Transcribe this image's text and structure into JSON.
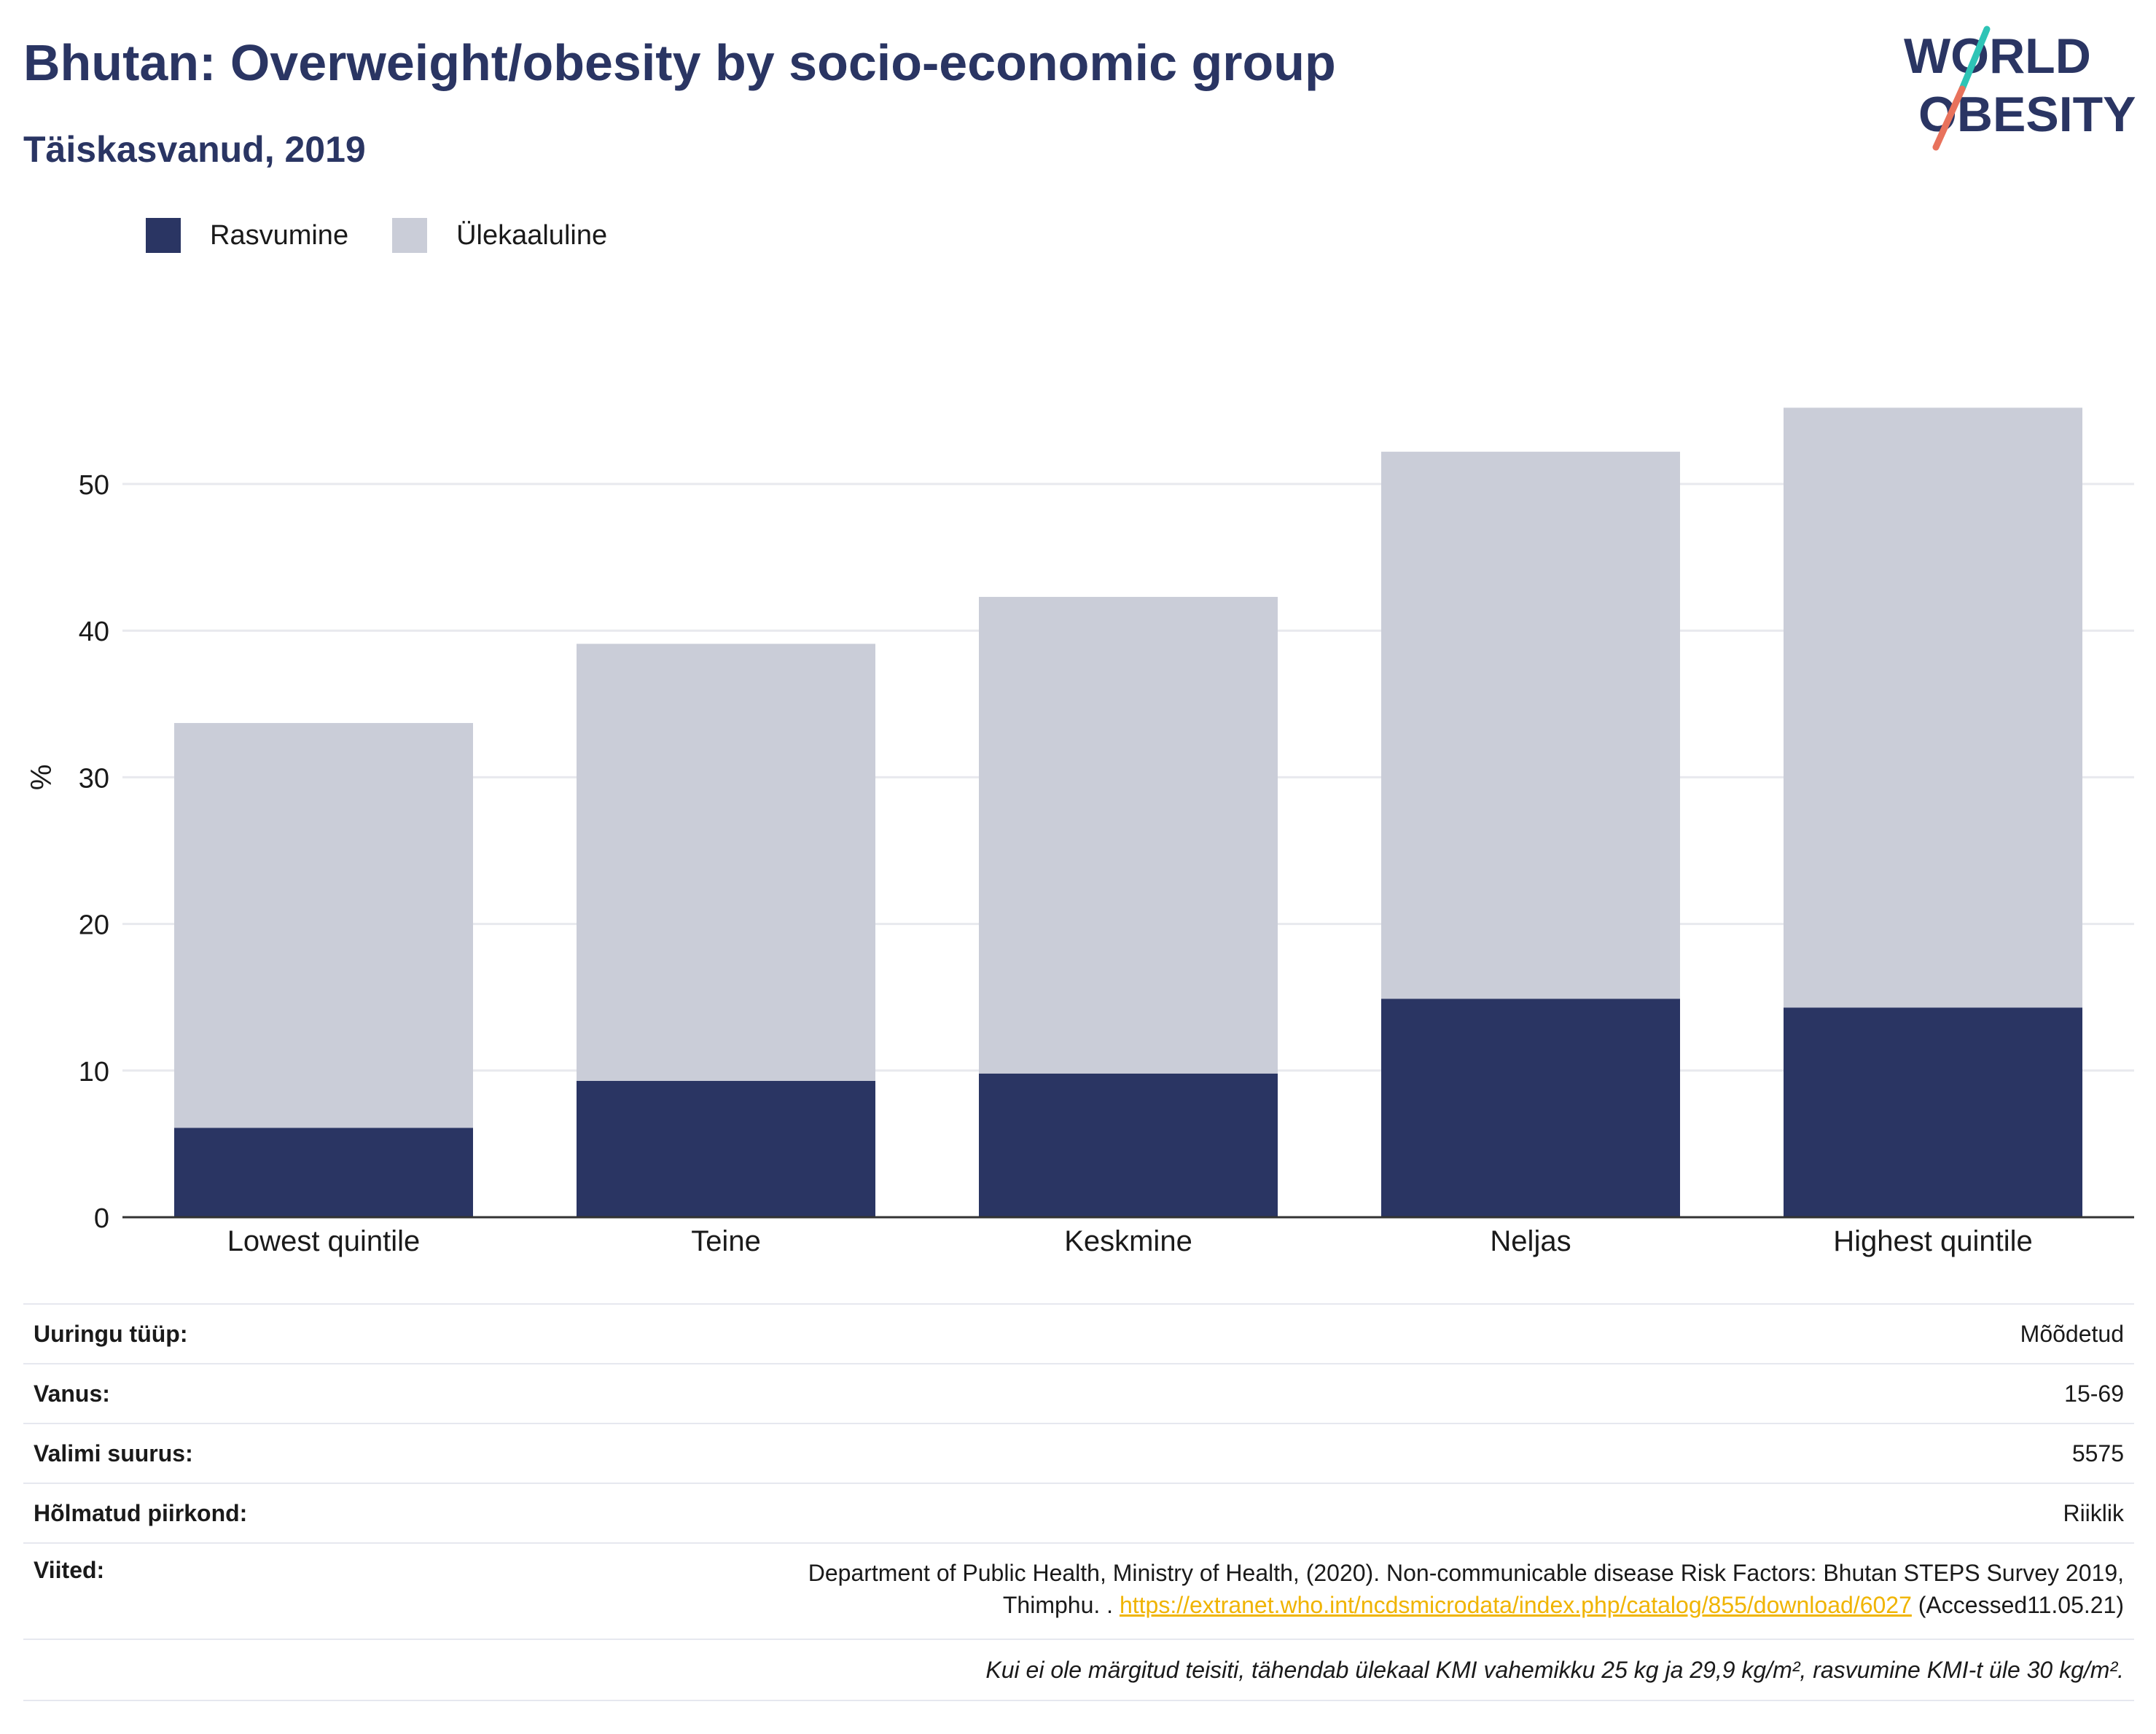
{
  "title": "Bhutan: Overweight/obesity by socio-economic group",
  "subtitle": "Täiskasvanud, 2019",
  "logo": {
    "line1": "WORLD",
    "line2": "OBESITY"
  },
  "colors": {
    "title": "#2a3563",
    "obesity": "#2a3563",
    "overweight": "#cacdd8",
    "accent_teal": "#2ec4b6",
    "accent_red": "#e8725c",
    "link": "#f0b400"
  },
  "chart_data": {
    "type": "bar",
    "stacked": true,
    "categories": [
      "Lowest quintile",
      "Teine",
      "Keskmine",
      "Neljas",
      "Highest quintile"
    ],
    "series": [
      {
        "name": "Rasvumine",
        "values": [
          6.1,
          9.3,
          9.8,
          14.9,
          14.3
        ]
      },
      {
        "name": "Ülekaaluline",
        "values": [
          27.6,
          29.8,
          32.5,
          37.3,
          40.9
        ]
      }
    ],
    "ylabel": "%",
    "xlabel": "",
    "ylim": [
      0,
      55
    ],
    "yticks": [
      0,
      10,
      20,
      30,
      40,
      50
    ],
    "grid": true,
    "legend_position": "top-left"
  },
  "details": {
    "survey_type": {
      "label": "Uuringu tüüp:",
      "value": "Mõõdetud"
    },
    "age": {
      "label": "Vanus:",
      "value": "15-69"
    },
    "sample_size": {
      "label": "Valimi suurus:",
      "value": "5575"
    },
    "area": {
      "label": "Hõlmatud piirkond:",
      "value": "Riiklik"
    },
    "references": {
      "label": "Viited:",
      "text_line1": "Department of Public Health, Ministry of Health, (2020). Non-communicable disease Risk Factors: Bhutan STEPS Survey 2019,",
      "text_line2_prefix": "Thimphu. . ",
      "link": "https://extranet.who.int/ncdsmicrodata/index.php/catalog/855/download/6027",
      "suffix": " (Accessed11.05.21)"
    },
    "note": "Kui ei ole märgitud teisiti, tähendab ülekaal KMI vahemikku 25 kg ja 29,9 kg/m², rasvumine KMI-t üle 30 kg/m²."
  }
}
